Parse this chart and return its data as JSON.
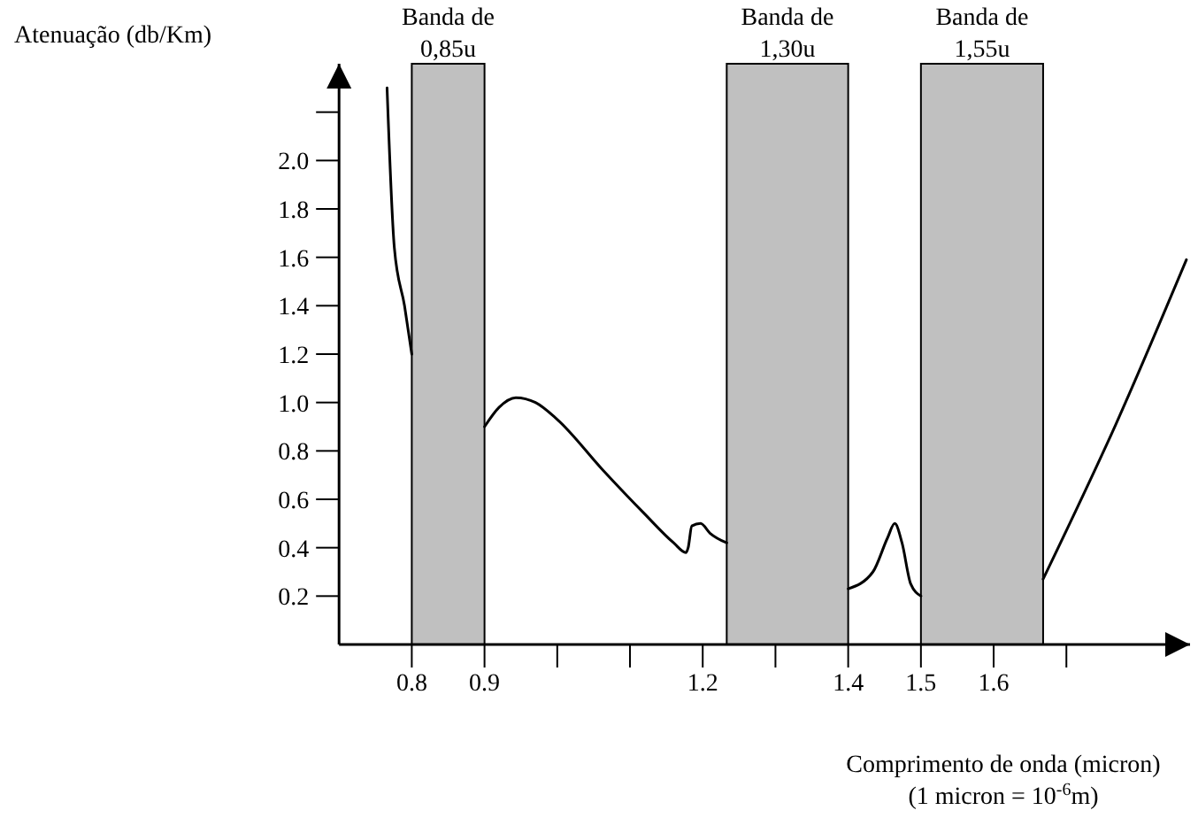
{
  "chart_data": {
    "type": "line",
    "xlabel": "Comprimento de onda (micron)",
    "ylabel": "Atenuação (db/Km)",
    "annotations": [
      "(1 micron = 10$^{-6}$m)"
    ],
    "xlim": [
      0.7,
      1.87
    ],
    "ylim": [
      0,
      2.4
    ],
    "xticks": [
      0.8,
      0.9,
      {
        "value": 1.0,
        "label": null
      },
      {
        "value": 1.1,
        "label": null
      },
      1.2,
      {
        "value": 1.3,
        "label": null
      },
      1.4,
      1.5,
      1.6,
      {
        "value": 1.7,
        "label": null
      }
    ],
    "yticks": [
      {
        "value": 0.2,
        "label": "0.2"
      },
      {
        "value": 0.4,
        "label": "0.4"
      },
      {
        "value": 0.6,
        "label": "0.6"
      },
      {
        "value": 0.8,
        "label": "0.8"
      },
      {
        "value": 1.0,
        "label": "1.0"
      },
      {
        "value": 1.2,
        "label": "1.2"
      },
      {
        "value": 1.4,
        "label": "1.4"
      },
      {
        "value": 1.6,
        "label": "1.6"
      },
      {
        "value": 1.8,
        "label": "1.8"
      },
      {
        "value": 2.0,
        "label": "2.0"
      },
      {
        "value": 2.2,
        "label": null
      }
    ],
    "bands": [
      {
        "axis": "x",
        "from": 0.8,
        "to": 0.9,
        "label": "Banda de 0,85u",
        "color": "#c0c0c0"
      },
      {
        "axis": "x",
        "from": 1.233,
        "to": 1.4,
        "label": "Banda de 1,30u",
        "color": "#c0c0c0"
      },
      {
        "axis": "x",
        "from": 1.5,
        "to": 1.668,
        "label": "Banda de 1,55u",
        "color": "#c0c0c0"
      }
    ],
    "series": [
      {
        "color": "#000000",
        "x": [
          0.766,
          0.776,
          0.79,
          0.8,
          0.85,
          0.9,
          0.92,
          0.943,
          0.97,
          1.0,
          1.063,
          1.12,
          1.16,
          1.177,
          1.18,
          1.185,
          1.197,
          1.21,
          1.233,
          1.3,
          1.4,
          1.434,
          1.454,
          1.464,
          1.474,
          1.486,
          1.5,
          1.6,
          1.668,
          1.768,
          1.865
        ],
        "values": [
          2.3,
          1.64,
          1.4,
          1.2,
          null,
          0.9,
          0.98,
          1.02,
          1.0,
          0.93,
          0.72,
          0.54,
          0.42,
          0.38,
          0.4,
          0.49,
          0.5,
          0.46,
          0.42,
          null,
          0.23,
          0.3,
          0.44,
          0.5,
          0.42,
          0.25,
          0.2,
          null,
          0.27,
          0.91,
          1.59
        ]
      }
    ]
  }
}
